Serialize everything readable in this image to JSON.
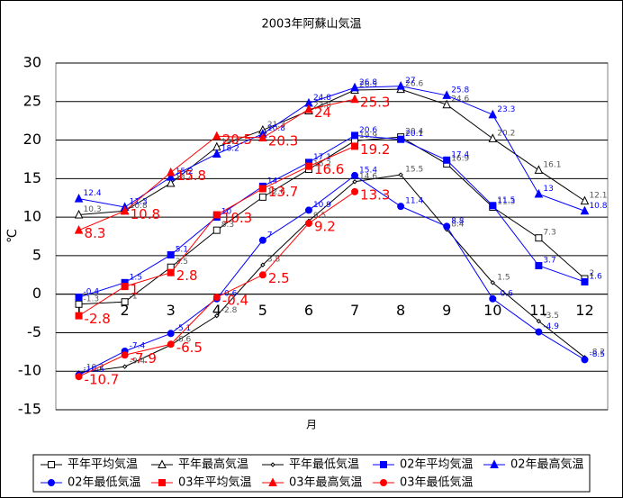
{
  "chart_data": {
    "type": "line",
    "title": "2003年阿蘇山気温",
    "x_label": "月",
    "y_label": "℃",
    "categories": [
      "1",
      "2",
      "3",
      "4",
      "5",
      "6",
      "7",
      "8",
      "9",
      "10",
      "11",
      "12"
    ],
    "ylim": [
      -15,
      30
    ],
    "yticks": [
      -15,
      -10,
      -5,
      0,
      5,
      10,
      15,
      20,
      25,
      30
    ],
    "grid": true,
    "legend": "bottom",
    "series": [
      {
        "name": "平年平均気温",
        "color": "#000000",
        "marker": "square",
        "filled": false,
        "values": [
          -1.3,
          -1.0,
          3.5,
          8.3,
          12.6,
          16.2,
          19.9,
          20.4,
          16.9,
          11.3,
          7.3,
          2.0
        ]
      },
      {
        "name": "平年最高気温",
        "color": "#000000",
        "marker": "triangle",
        "filled": false,
        "values": [
          10.3,
          10.8,
          14.4,
          19.1,
          21.3,
          23.8,
          26.5,
          26.6,
          24.6,
          20.2,
          16.1,
          12.1
        ]
      },
      {
        "name": "平年最低気温",
        "color": "#000000",
        "marker": "diamond",
        "filled": false,
        "values": [
          -10.2,
          -9.4,
          -6.6,
          -2.8,
          3.8,
          9.5,
          14.6,
          15.5,
          8.4,
          1.5,
          -3.5,
          -8.2
        ]
      },
      {
        "name": "02年平均気温",
        "color": "#0000ff",
        "marker": "square",
        "filled": true,
        "values": [
          -0.4,
          1.5,
          5.1,
          10.0,
          14.0,
          17.1,
          20.6,
          20.1,
          17.4,
          11.5,
          3.7,
          1.6
        ]
      },
      {
        "name": "02年最高気温",
        "color": "#0000ff",
        "marker": "triangle",
        "filled": true,
        "values": [
          12.4,
          11.3,
          15.2,
          18.2,
          20.8,
          24.8,
          26.8,
          27.0,
          25.8,
          23.3,
          13.0,
          10.8
        ]
      },
      {
        "name": "02年最低気温",
        "color": "#0000ff",
        "marker": "circle",
        "filled": true,
        "values": [
          -10.5,
          -7.4,
          -5.1,
          -0.6,
          7.0,
          10.9,
          15.4,
          11.4,
          8.8,
          -0.6,
          -4.9,
          -8.5
        ]
      },
      {
        "name": "03年平均気温",
        "color": "#ff0000",
        "marker": "square",
        "filled": true,
        "values": [
          -2.8,
          1.0,
          2.8,
          10.3,
          13.7,
          16.6,
          19.2,
          null,
          null,
          null,
          null,
          null
        ]
      },
      {
        "name": "03年最高気温",
        "color": "#ff0000",
        "marker": "triangle",
        "filled": true,
        "values": [
          8.3,
          10.8,
          15.8,
          20.5,
          20.3,
          24.0,
          25.3,
          null,
          null,
          null,
          null,
          null
        ]
      },
      {
        "name": "03年最低気温",
        "color": "#ff0000",
        "marker": "circle",
        "filled": true,
        "values": [
          -10.7,
          -7.9,
          -6.5,
          -0.4,
          2.5,
          9.2,
          13.3,
          null,
          null,
          null,
          null,
          null
        ]
      }
    ]
  }
}
